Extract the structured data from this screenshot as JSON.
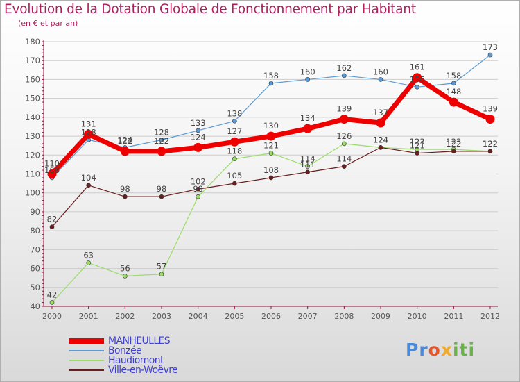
{
  "title": "Evolution de la Dotation Globale de Fonctionnement par Habitant",
  "subtitle": "(en € et par an)",
  "brand": {
    "p1": "Pr",
    "p2": "o",
    "p3": "x",
    "p4": "iti"
  },
  "colors": {
    "title": "#b01e5e",
    "manheulles": "#ee0000",
    "bonzee": "#5b9bd5",
    "haudiomont": "#99dd66",
    "ville": "#6b1d1d",
    "axis": "#9a0f3e",
    "grid": "#cccccc",
    "legend_text": "#3f3fd0"
  },
  "chart_data": {
    "type": "line",
    "title": "Evolution de la Dotation Globale de Fonctionnement par Habitant",
    "subtitle": "(en € et par an)",
    "xlabel": "",
    "ylabel": "",
    "ylim": [
      40,
      180
    ],
    "y_ticks": [
      40,
      50,
      60,
      70,
      80,
      90,
      100,
      110,
      120,
      130,
      140,
      150,
      160,
      170,
      180
    ],
    "x": [
      2000,
      2001,
      2002,
      2003,
      2004,
      2005,
      2006,
      2007,
      2008,
      2009,
      2010,
      2011,
      2012
    ],
    "grid": "horizontal",
    "legend_position": "bottom-left",
    "series": [
      {
        "key": "manheulles",
        "name": "MANHEULLES",
        "width": 7,
        "marker": 6.5,
        "values": [
          110,
          131,
          122,
          122,
          124,
          127,
          130,
          134,
          139,
          137,
          161,
          148,
          139
        ]
      },
      {
        "key": "bonzee",
        "name": "Bonzée",
        "width": 1.2,
        "marker": 3,
        "values": [
          108,
          128,
          124,
          128,
          133,
          138,
          158,
          160,
          162,
          160,
          156,
          158,
          173
        ]
      },
      {
        "key": "haudiomont",
        "name": "Haudiomont",
        "width": 1.2,
        "marker": 3,
        "values": [
          42,
          63,
          56,
          57,
          98,
          118,
          121,
          114,
          126,
          124,
          123,
          123,
          122
        ]
      },
      {
        "key": "ville",
        "name": "Ville-en-Woëvre",
        "width": 1.2,
        "marker": 3,
        "values": [
          82,
          104,
          98,
          98,
          102,
          105,
          108,
          111,
          114,
          124,
          121,
          122,
          122
        ]
      }
    ]
  }
}
